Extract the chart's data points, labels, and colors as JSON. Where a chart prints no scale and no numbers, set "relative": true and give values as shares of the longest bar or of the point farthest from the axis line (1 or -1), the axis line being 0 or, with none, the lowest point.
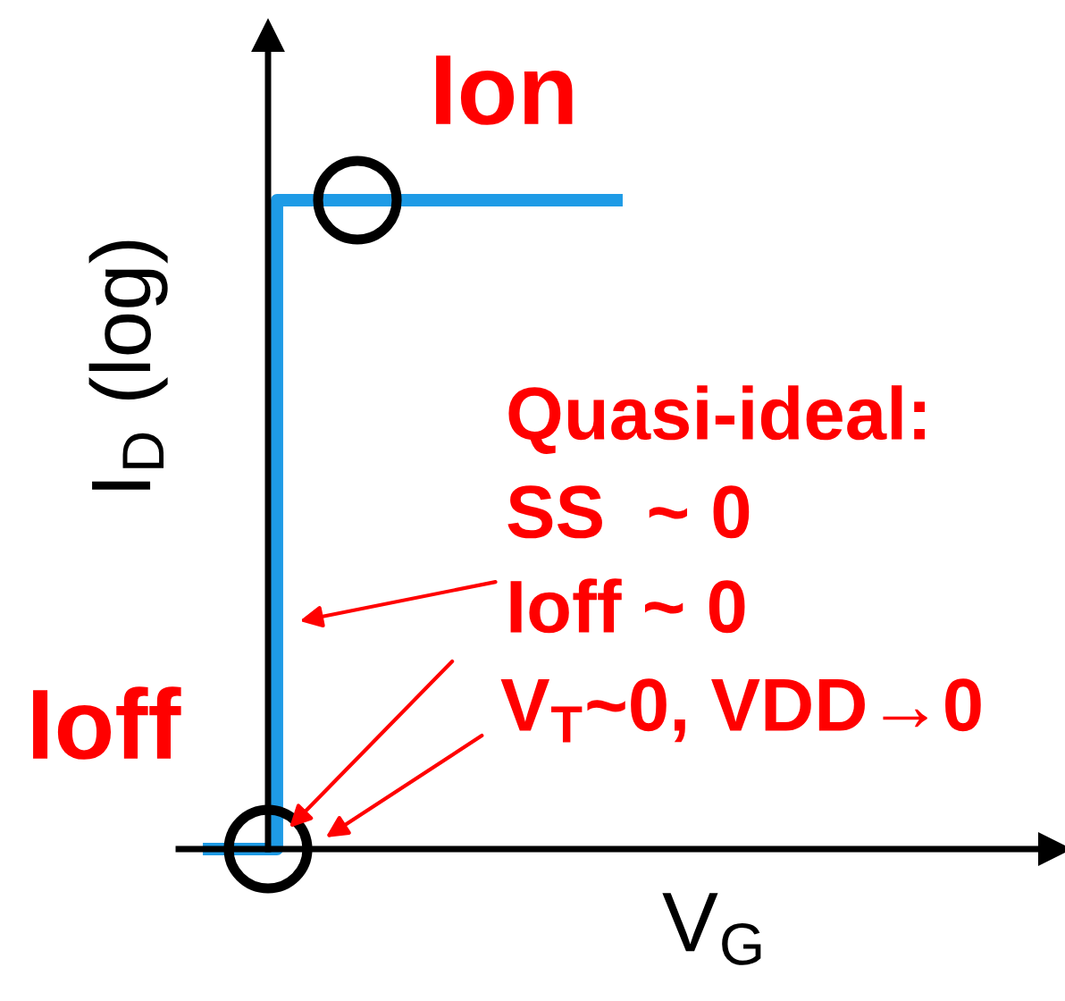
{
  "chart_data": {
    "type": "step",
    "relative": true,
    "xlabel": "V$_{G}$",
    "ylabel": "I$_{D}$ (log)",
    "categories": [
      null,
      null,
      null,
      null,
      null,
      null,
      null
    ],
    "series": [
      {
        "color": "#1e9be6",
        "values": [
          0,
          1,
          1,
          1,
          1,
          1,
          1
        ]
      }
    ],
    "annotations": [
      "Ion",
      "Ioff",
      "Quasi-ideal:",
      "SS  ~ 0",
      "Ioff ~ 0",
      "V$_{T}$~0, VDD→0"
    ]
  }
}
